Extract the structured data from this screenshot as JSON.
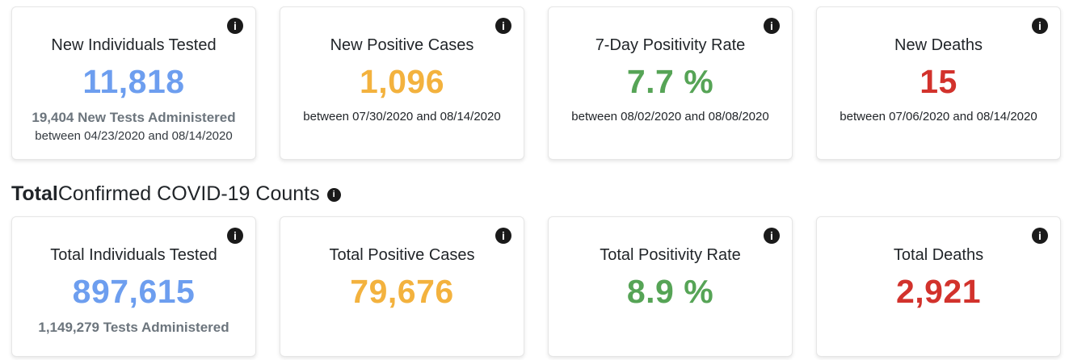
{
  "colors": {
    "blue": "#6D9EEF",
    "orange": "#F3B23E",
    "green": "#56A456",
    "red": "#D2322C"
  },
  "icons": {
    "info_glyph": "i"
  },
  "new_counts": {
    "cards": [
      {
        "title": "New Individuals Tested",
        "value": "11,818",
        "subtitle_bold": "19,404 New Tests Administered",
        "date_range": "between 04/23/2020 and 08/14/2020"
      },
      {
        "title": "New Positive Cases",
        "value": "1,096",
        "date_range": "between 07/30/2020 and 08/14/2020"
      },
      {
        "title": "7-Day Positivity Rate",
        "value": "7.7 %",
        "date_range": "between 08/02/2020 and 08/08/2020"
      },
      {
        "title": "New Deaths",
        "value": "15",
        "date_range": "between 07/06/2020 and 08/14/2020"
      }
    ]
  },
  "totals_header": {
    "bold": "Total",
    "rest": " Confirmed COVID-19 Counts"
  },
  "total_counts": {
    "cards": [
      {
        "title": "Total Individuals Tested",
        "value": "897,615",
        "subtitle_bold": "1,149,279 Tests Administered"
      },
      {
        "title": "Total Positive Cases",
        "value": "79,676"
      },
      {
        "title": "Total Positivity Rate",
        "value": "8.9 %"
      },
      {
        "title": "Total Deaths",
        "value": "2,921"
      }
    ]
  }
}
